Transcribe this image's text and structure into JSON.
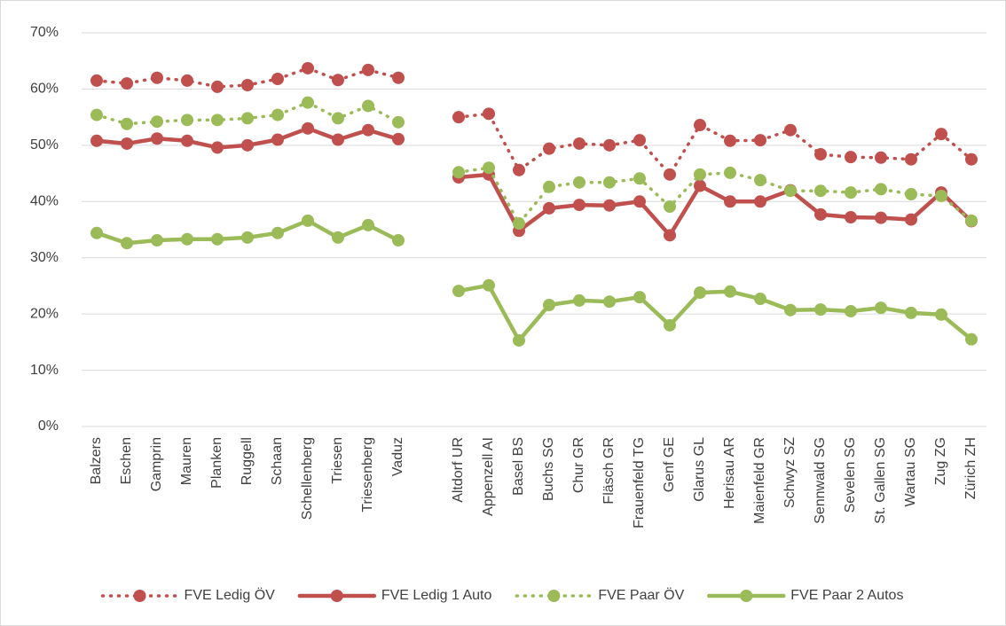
{
  "chart_data": {
    "type": "line",
    "categories": [
      "Balzers",
      "Eschen",
      "Gamprin",
      "Mauren",
      "Planken",
      "Ruggell",
      "Schaan",
      "Schellenberg",
      "Triesen",
      "Triesenberg",
      "Vaduz",
      null,
      "Altdorf UR",
      "Appenzell AI",
      "Basel BS",
      "Buchs SG",
      "Chur GR",
      "Fläsch GR",
      "Frauenfeld TG",
      "Genf GE",
      "Glarus GL",
      "Herisau AR",
      "Maienfeld GR",
      "Schwyz SZ",
      "Sennwald SG",
      "Sevelen SG",
      "St. Gallen SG",
      "Wartau SG",
      "Zug ZG",
      "Zürich ZH"
    ],
    "series": [
      {
        "name": "FVE Ledig ÖV",
        "color": "#c0504d",
        "line_style": "dotted",
        "values": [
          61.5,
          61.0,
          62.0,
          61.5,
          60.4,
          60.7,
          61.8,
          63.7,
          61.6,
          63.4,
          62.0,
          null,
          55.0,
          55.6,
          45.6,
          49.4,
          50.3,
          50.0,
          50.9,
          44.8,
          53.6,
          50.8,
          50.9,
          52.7,
          48.4,
          47.9,
          47.8,
          47.5,
          52.0,
          47.5
        ]
      },
      {
        "name": "FVE Ledig 1 Auto",
        "color": "#c0504d",
        "line_style": "solid",
        "values": [
          50.8,
          50.3,
          51.2,
          50.8,
          49.6,
          50.0,
          51.0,
          53.0,
          51.0,
          52.7,
          51.1,
          null,
          44.3,
          44.8,
          34.8,
          38.8,
          39.4,
          39.3,
          40.0,
          34.0,
          42.8,
          40.0,
          40.0,
          42.0,
          37.7,
          37.2,
          37.1,
          36.8,
          41.6,
          36.5
        ]
      },
      {
        "name": "FVE Paar ÖV",
        "color": "#9bbb59",
        "line_style": "dotted",
        "values": [
          55.4,
          53.8,
          54.2,
          54.5,
          54.5,
          54.8,
          55.4,
          57.6,
          54.8,
          57.0,
          54.1,
          null,
          45.2,
          46.0,
          36.1,
          42.6,
          43.4,
          43.4,
          44.1,
          39.1,
          44.8,
          45.1,
          43.8,
          41.9,
          41.9,
          41.6,
          42.2,
          41.3,
          41.0,
          36.6
        ]
      },
      {
        "name": "FVE Paar 2 Autos",
        "color": "#9bbb59",
        "line_style": "solid",
        "values": [
          34.4,
          32.6,
          33.1,
          33.3,
          33.3,
          33.6,
          34.4,
          36.6,
          33.6,
          35.8,
          33.1,
          null,
          24.1,
          25.1,
          15.3,
          21.6,
          22.4,
          22.2,
          23.0,
          18.0,
          23.8,
          24.0,
          22.7,
          20.7,
          20.8,
          20.5,
          21.1,
          20.2,
          19.9,
          15.5
        ]
      }
    ],
    "ylim": [
      0,
      70
    ],
    "yticks": [
      {
        "value": 0,
        "label": "0%"
      },
      {
        "value": 10,
        "label": "10%"
      },
      {
        "value": 20,
        "label": "20%"
      },
      {
        "value": 30,
        "label": "30%"
      },
      {
        "value": 40,
        "label": "40%"
      },
      {
        "value": 50,
        "label": "50%"
      },
      {
        "value": 60,
        "label": "60%"
      },
      {
        "value": 70,
        "label": "70%"
      }
    ],
    "grid": true,
    "legend": "bottom"
  }
}
